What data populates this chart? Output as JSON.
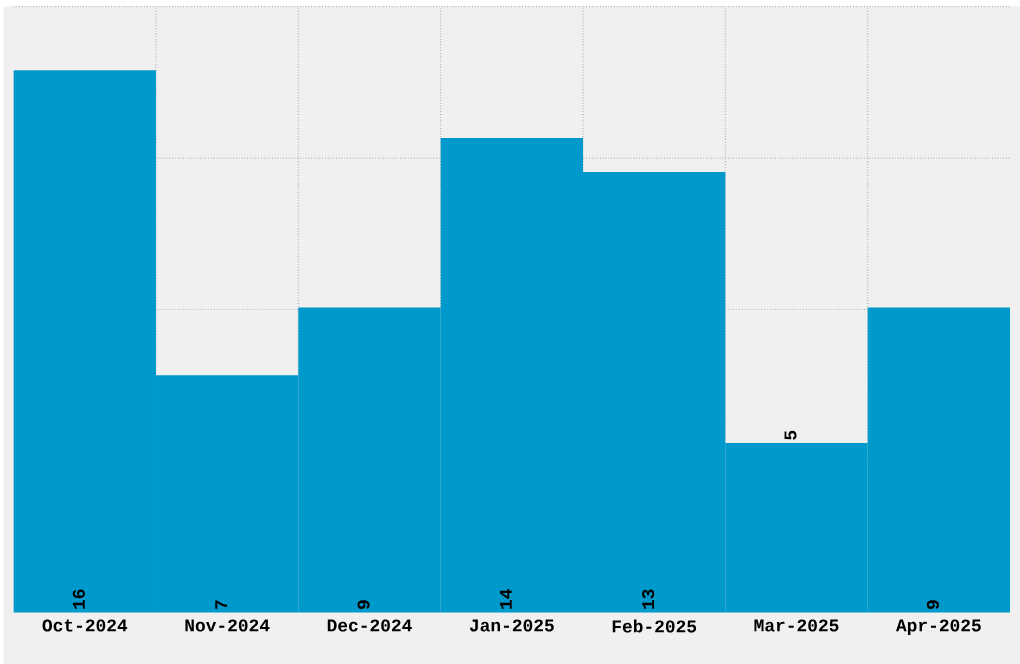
{
  "chart_data": {
    "type": "bar",
    "categories": [
      "Oct-2024",
      "Nov-2024",
      "Dec-2024",
      "Jan-2025",
      "Feb-2025",
      "Mar-2025",
      "Apr-2025"
    ],
    "values": [
      16,
      7,
      9,
      14,
      13,
      5,
      9
    ],
    "color": "#0099cc",
    "ylim": [
      0,
      17.88
    ],
    "yticks": [
      {
        "value": 4.47,
        "label": null
      },
      {
        "value": 8.94,
        "label": null
      },
      {
        "value": 13.41,
        "label": null
      },
      {
        "value": 17.88,
        "label": null
      }
    ],
    "tick_labels": "x",
    "grid": true,
    "data_labels": true
  }
}
